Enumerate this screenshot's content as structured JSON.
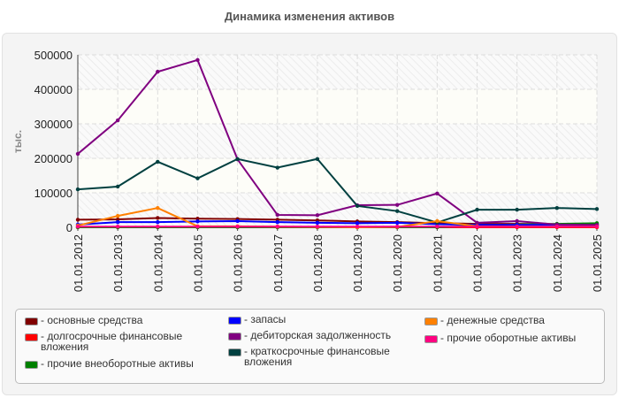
{
  "chart_data": {
    "type": "line",
    "title": "Динамика изменения активов",
    "ylabel": "тыс.",
    "ylim": [
      0,
      500000
    ],
    "yticks": [
      "0",
      "100000",
      "200000",
      "300000",
      "400000",
      "500000"
    ],
    "categories": [
      "01.01.2012",
      "01.01.2013",
      "01.01.2014",
      "01.01.2015",
      "01.01.2016",
      "01.01.2017",
      "01.01.2018",
      "01.01.2019",
      "01.01.2020",
      "01.01.2021",
      "01.01.2022",
      "01.01.2023",
      "01.01.2024",
      "01.01.2025"
    ],
    "grid": true,
    "legend_placement": "bottom",
    "series": [
      {
        "name": "- основные средства",
        "color": "#800000",
        "values": [
          22000,
          23000,
          27000,
          25000,
          24000,
          22000,
          20000,
          17000,
          15000,
          12000,
          10000,
          10000,
          9000,
          8000
        ]
      },
      {
        "name": "- долгосрочные финансовые вложения",
        "color": "#ff0000",
        "values": [
          0,
          0,
          0,
          0,
          0,
          0,
          0,
          0,
          0,
          0,
          0,
          0,
          0,
          0
        ]
      },
      {
        "name": "- прочие внеоборотные активы",
        "color": "#008000",
        "values": [
          0,
          0,
          0,
          0,
          0,
          0,
          0,
          0,
          0,
          0,
          4000,
          8000,
          10000,
          12000
        ]
      },
      {
        "name": "- запасы",
        "color": "#0000ff",
        "values": [
          8000,
          15000,
          15000,
          17000,
          18000,
          15000,
          13000,
          12000,
          13000,
          9000,
          7000,
          7000,
          7000,
          6000
        ]
      },
      {
        "name": "- дебиторская задолженность",
        "color": "#800080",
        "values": [
          213000,
          310000,
          451000,
          485000,
          197000,
          36000,
          35000,
          64000,
          65000,
          98000,
          13000,
          18000,
          8000,
          7000
        ]
      },
      {
        "name": "- краткосрочные финансовые вложения",
        "color": "#004040",
        "values": [
          110000,
          118000,
          190000,
          142000,
          198000,
          173000,
          198000,
          62000,
          47000,
          14000,
          51000,
          51000,
          56000,
          53000
        ]
      },
      {
        "name": "- денежные средства",
        "color": "#ff8000",
        "values": [
          5000,
          33000,
          56000,
          3000,
          3000,
          2000,
          1000,
          0,
          1000,
          18000,
          3000,
          2000,
          2000,
          2000
        ]
      },
      {
        "name": "- прочие оборотные активы",
        "color": "#ff0080",
        "values": [
          2000,
          2000,
          2000,
          2000,
          2000,
          2000,
          2000,
          2000,
          2000,
          2000,
          2000,
          2000,
          2000,
          2000
        ]
      }
    ]
  }
}
